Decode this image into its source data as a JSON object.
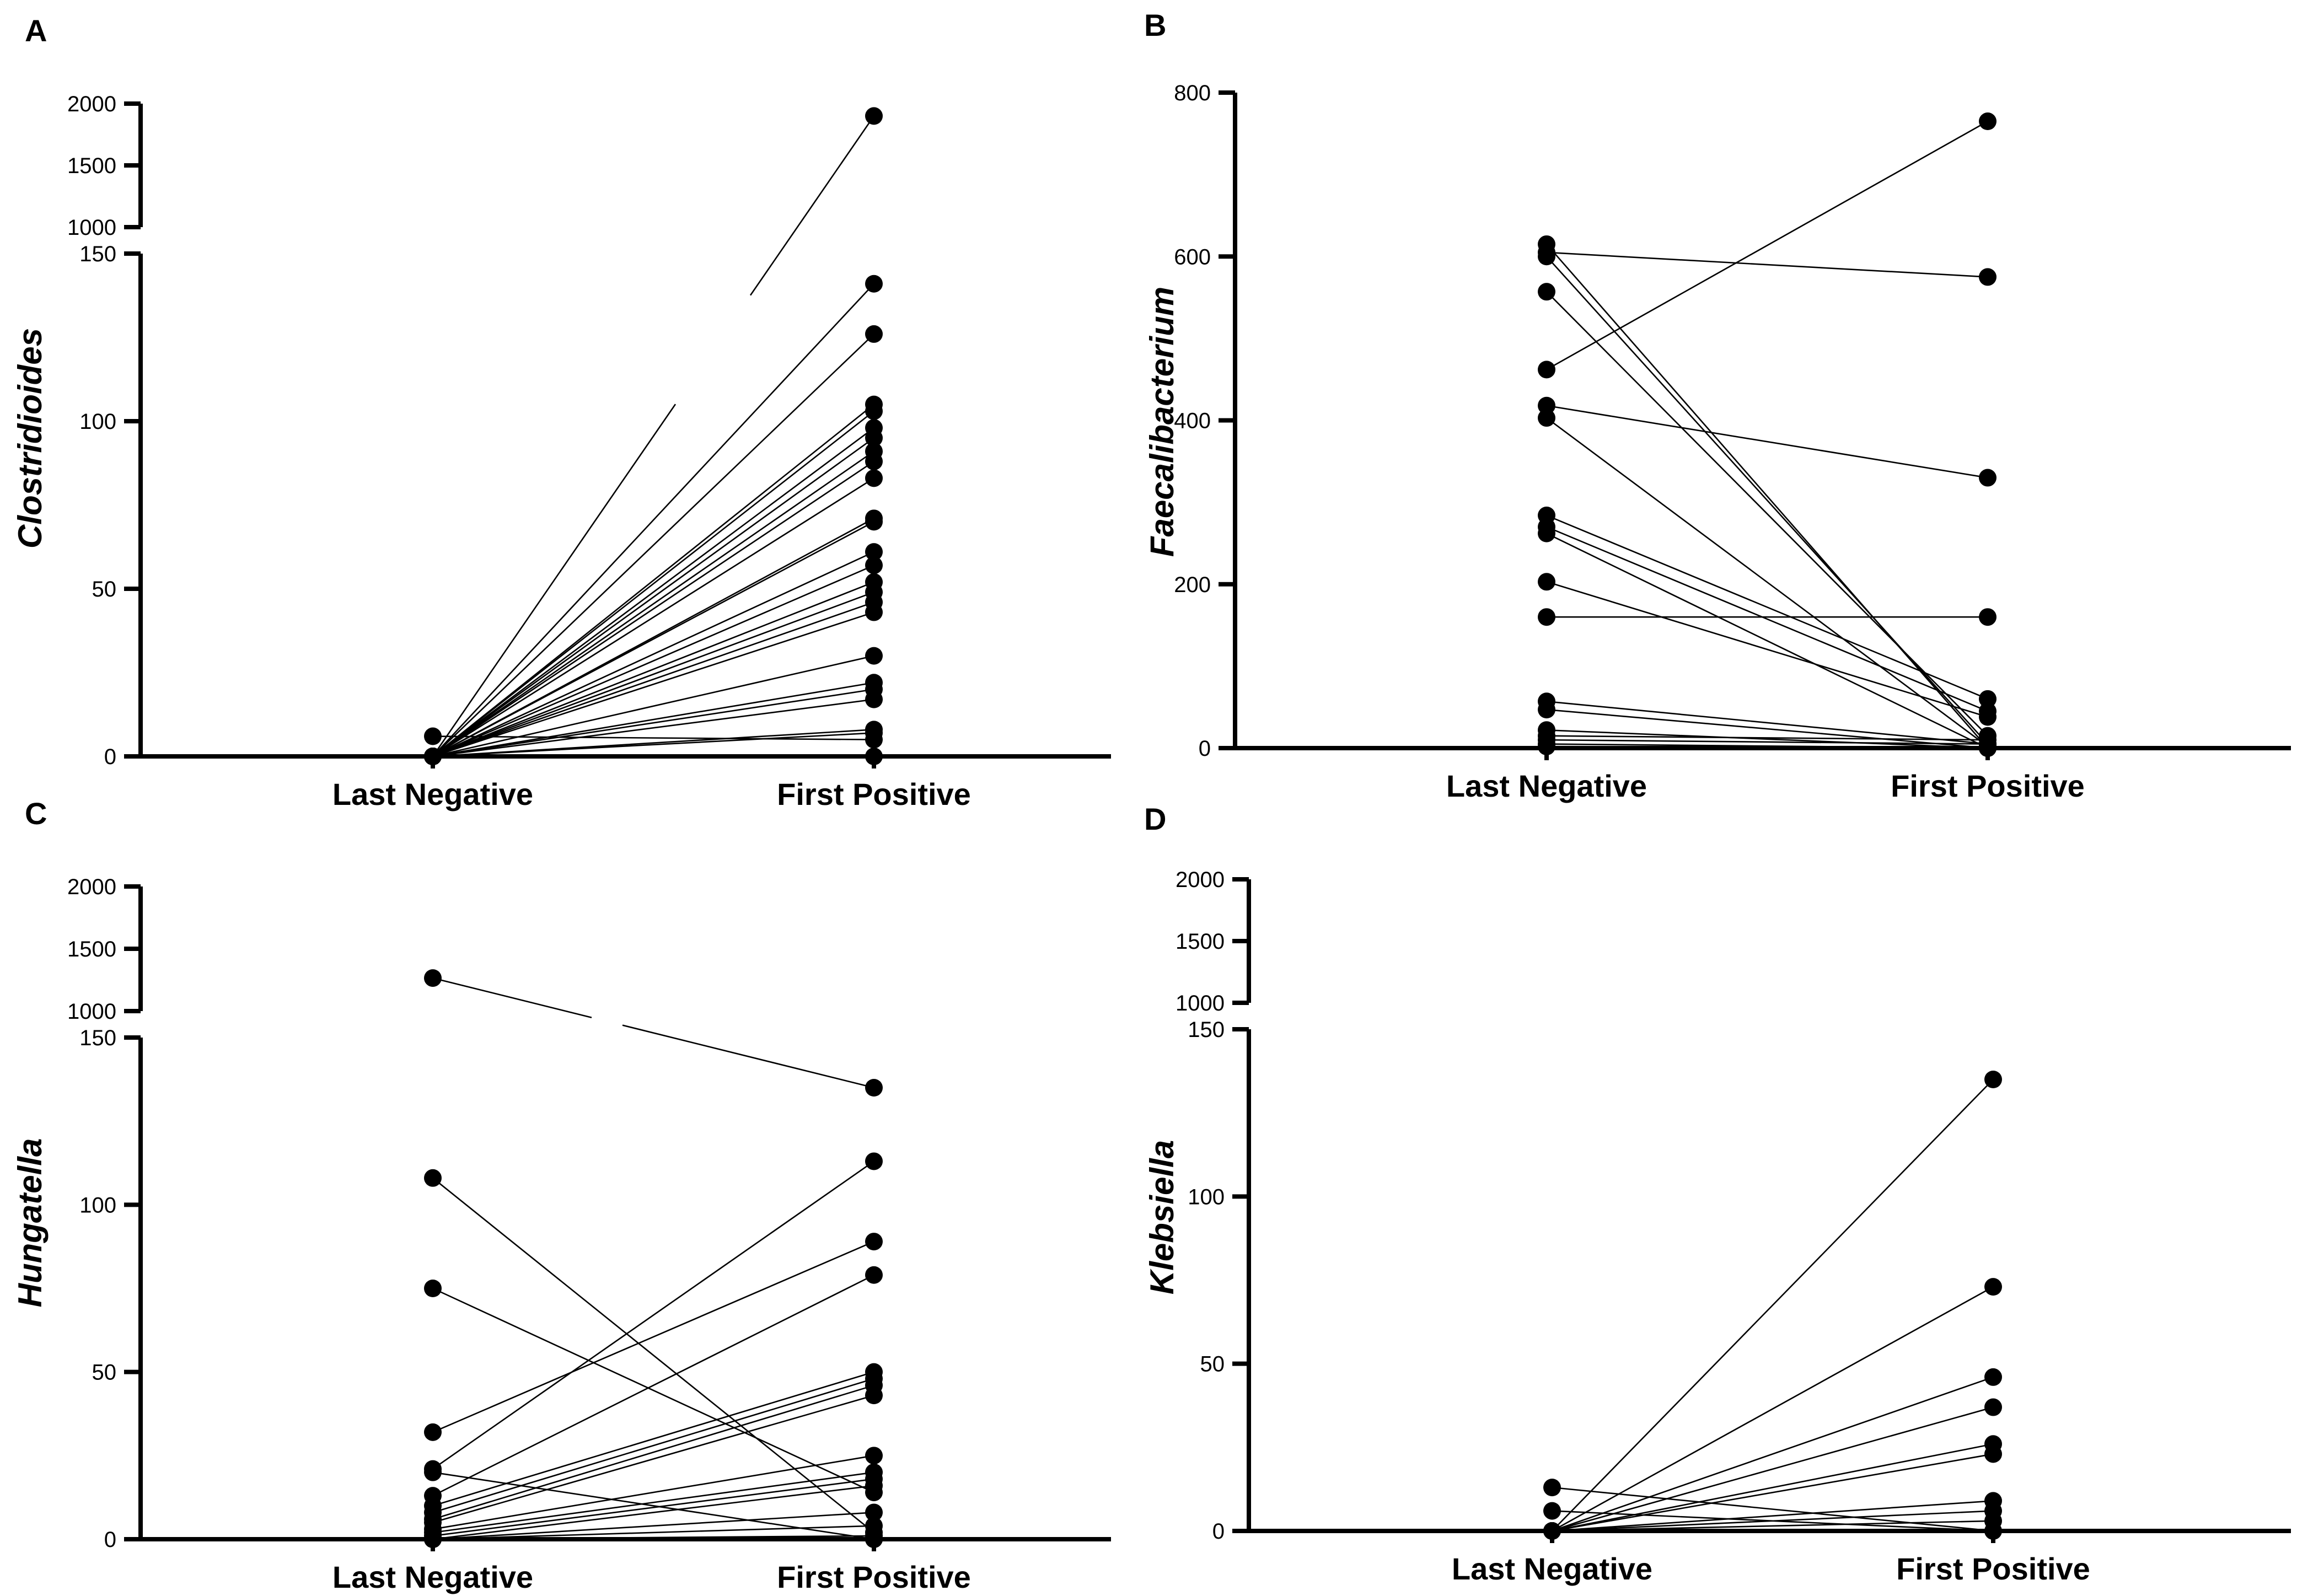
{
  "chart_data": [
    {
      "panel": "A",
      "type": "scatter",
      "subtype": "paired-dot-plot",
      "categories": [
        "Last Negative",
        "First Positive"
      ],
      "ylabel": "Clostridioides",
      "y_axis_segments": [
        {
          "range": [
            0,
            150
          ],
          "ticks": [
            0,
            50,
            100,
            150
          ],
          "tick_labels": [
            "0",
            "50",
            "100",
            "150"
          ]
        },
        {
          "range": [
            1000,
            2000
          ],
          "ticks": [
            1000,
            1500,
            2000
          ],
          "tick_labels": [
            "1000",
            "1500",
            "2000"
          ]
        }
      ],
      "pairs": [
        [
          0,
          1900
        ],
        [
          0,
          141
        ],
        [
          0,
          126
        ],
        [
          0,
          105
        ],
        [
          0,
          103
        ],
        [
          0,
          98
        ],
        [
          0,
          95
        ],
        [
          0,
          91
        ],
        [
          0,
          88
        ],
        [
          0,
          83
        ],
        [
          0,
          71
        ],
        [
          0,
          70
        ],
        [
          0,
          61
        ],
        [
          0,
          57
        ],
        [
          0,
          52
        ],
        [
          0,
          49
        ],
        [
          0,
          46
        ],
        [
          0,
          43
        ],
        [
          0,
          30
        ],
        [
          0,
          22
        ],
        [
          0,
          20
        ],
        [
          0,
          17
        ],
        [
          0,
          8
        ],
        [
          0,
          7
        ],
        [
          6,
          5
        ],
        [
          0,
          0
        ]
      ]
    },
    {
      "panel": "B",
      "type": "scatter",
      "subtype": "paired-dot-plot",
      "categories": [
        "Last Negative",
        "First Positive"
      ],
      "ylabel": "Faecalibacterium",
      "y_axis_segments": [
        {
          "range": [
            0,
            800
          ],
          "ticks": [
            0,
            200,
            400,
            600,
            800
          ],
          "tick_labels": [
            "0",
            "200",
            "400",
            "600",
            "800"
          ]
        }
      ],
      "pairs": [
        [
          615,
          0
        ],
        [
          605,
          575
        ],
        [
          600,
          5
        ],
        [
          557,
          15
        ],
        [
          462,
          765
        ],
        [
          418,
          330
        ],
        [
          403,
          2
        ],
        [
          284,
          60
        ],
        [
          270,
          45
        ],
        [
          262,
          0
        ],
        [
          203,
          38
        ],
        [
          160,
          160
        ],
        [
          57,
          5
        ],
        [
          47,
          0
        ],
        [
          22,
          0
        ],
        [
          15,
          10
        ],
        [
          10,
          5
        ],
        [
          5,
          0
        ],
        [
          2,
          0
        ]
      ]
    },
    {
      "panel": "C",
      "type": "scatter",
      "subtype": "paired-dot-plot",
      "categories": [
        "Last Negative",
        "First Positive"
      ],
      "ylabel": "Hungatella",
      "y_axis_segments": [
        {
          "range": [
            0,
            150
          ],
          "ticks": [
            0,
            50,
            100,
            150
          ],
          "tick_labels": [
            "0",
            "50",
            "100",
            "150"
          ]
        },
        {
          "range": [
            1000,
            2000
          ],
          "ticks": [
            1000,
            1500,
            2000
          ],
          "tick_labels": [
            "1000",
            "1500",
            "2000"
          ]
        }
      ],
      "pairs": [
        [
          1265,
          135
        ],
        [
          108,
          2
        ],
        [
          75,
          14
        ],
        [
          32,
          89
        ],
        [
          21,
          113
        ],
        [
          20,
          0
        ],
        [
          13,
          79
        ],
        [
          10,
          50
        ],
        [
          8,
          48
        ],
        [
          6,
          46
        ],
        [
          5,
          43
        ],
        [
          3,
          25
        ],
        [
          2,
          20
        ],
        [
          1,
          18
        ],
        [
          0,
          16
        ],
        [
          0,
          8
        ],
        [
          0,
          4
        ],
        [
          0,
          1
        ],
        [
          0,
          0
        ]
      ]
    },
    {
      "panel": "D",
      "type": "scatter",
      "subtype": "paired-dot-plot",
      "categories": [
        "Last Negative",
        "First Positive"
      ],
      "ylabel": "Klebsiella",
      "y_axis_segments": [
        {
          "range": [
            0,
            150
          ],
          "ticks": [
            0,
            50,
            100,
            150
          ],
          "tick_labels": [
            "0",
            "50",
            "100",
            "150"
          ]
        },
        {
          "range": [
            1000,
            2000
          ],
          "ticks": [
            1000,
            1500,
            2000
          ],
          "tick_labels": [
            "1000",
            "1500",
            "2000"
          ]
        }
      ],
      "pairs": [
        [
          0,
          135
        ],
        [
          0,
          73
        ],
        [
          0,
          46
        ],
        [
          0,
          37
        ],
        [
          0,
          26
        ],
        [
          0,
          23
        ],
        [
          0,
          9
        ],
        [
          0,
          6
        ],
        [
          13,
          0
        ],
        [
          6,
          0
        ],
        [
          0,
          3
        ]
      ]
    }
  ]
}
